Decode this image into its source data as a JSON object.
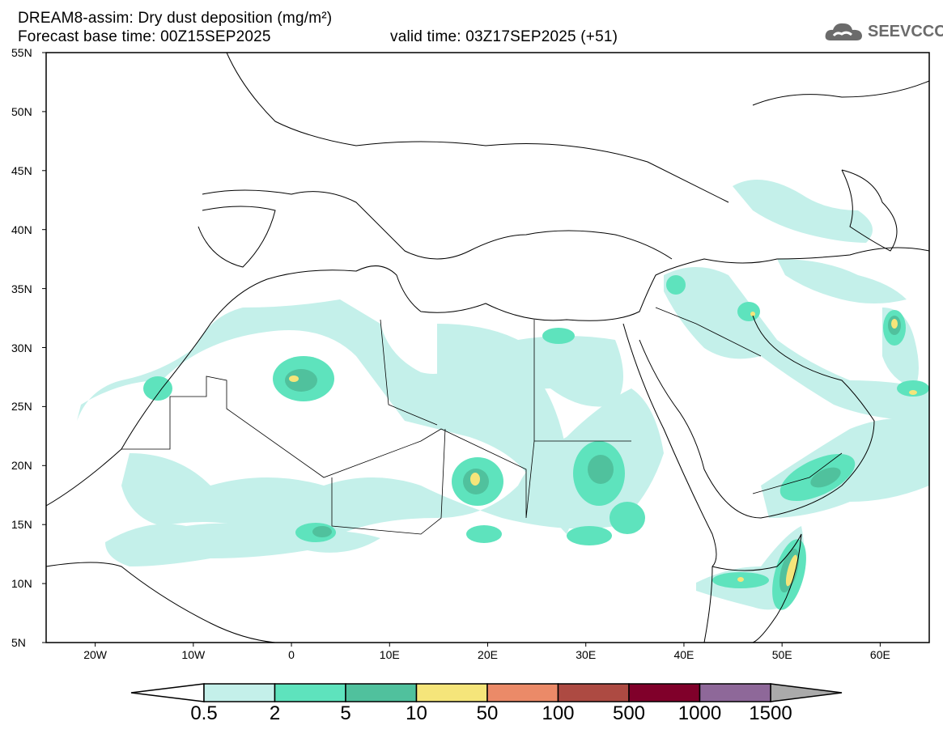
{
  "header": {
    "title": "DREAM8-assim: Dry dust deposition (mg/m²)",
    "base_time": "Forecast base time: 00Z15SEP2025",
    "valid_time": "valid time: 03Z17SEP2025 (+51)",
    "logo_text": "SEEVCCC"
  },
  "map": {
    "lon_range": [
      -25,
      65
    ],
    "lat_range": [
      5,
      55
    ],
    "lat_labels": [
      "55N",
      "50N",
      "45N",
      "40N",
      "35N",
      "30N",
      "25N",
      "20N",
      "15N",
      "10N",
      "5N"
    ],
    "lon_labels": [
      "20W",
      "10W",
      "0",
      "10E",
      "20E",
      "30E",
      "40E",
      "50E",
      "60E"
    ]
  },
  "colorbar": {
    "labels": [
      "0.5",
      "2",
      "5",
      "10",
      "50",
      "100",
      "500",
      "1000",
      "1500"
    ],
    "colors": [
      "#c4f0ea",
      "#5ee3bd",
      "#50c19d",
      "#f5e57a",
      "#eb8a68",
      "#ad4a42",
      "#80002a",
      "#8e6899"
    ],
    "under_color": "#ffffff",
    "over_color": "#aaaaaa"
  }
}
